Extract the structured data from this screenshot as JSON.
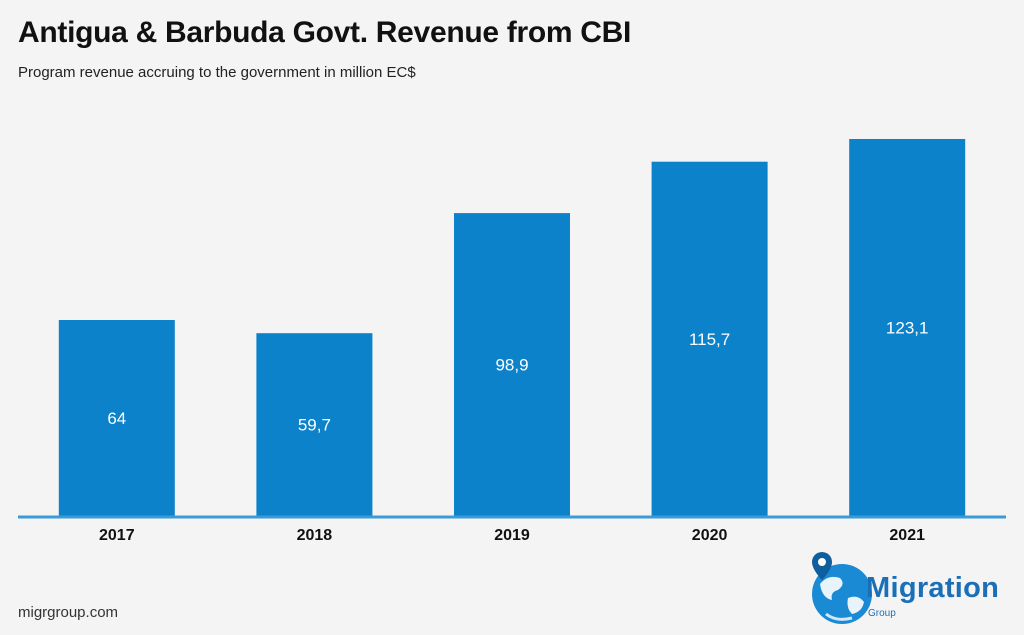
{
  "header": {
    "title": "Antigua & Barbuda Govt. Revenue from CBI",
    "subtitle": "Program revenue accruing to the government in million EC$"
  },
  "footer": {
    "source": "migrgroup.com"
  },
  "logo": {
    "name": "Migration",
    "sub": "Group",
    "icon": "globe-pin-icon",
    "color": "#1a6fb7"
  },
  "chart_data": {
    "type": "bar",
    "categories": [
      "2017",
      "2018",
      "2019",
      "2020",
      "2021"
    ],
    "values": [
      64,
      59.7,
      98.9,
      115.7,
      123.1
    ],
    "value_labels": [
      "64",
      "59,7",
      "98,9",
      "115,7",
      "123,1"
    ],
    "title": "Antigua & Barbuda Govt. Revenue from CBI",
    "subtitle": "Program revenue accruing to the government in million EC$",
    "xlabel": "",
    "ylabel": "",
    "ylim": [
      0,
      123.1
    ],
    "grid": false,
    "legend": "none",
    "bar_color": "#0c82cb",
    "axis_color": "#3a9bd8"
  }
}
